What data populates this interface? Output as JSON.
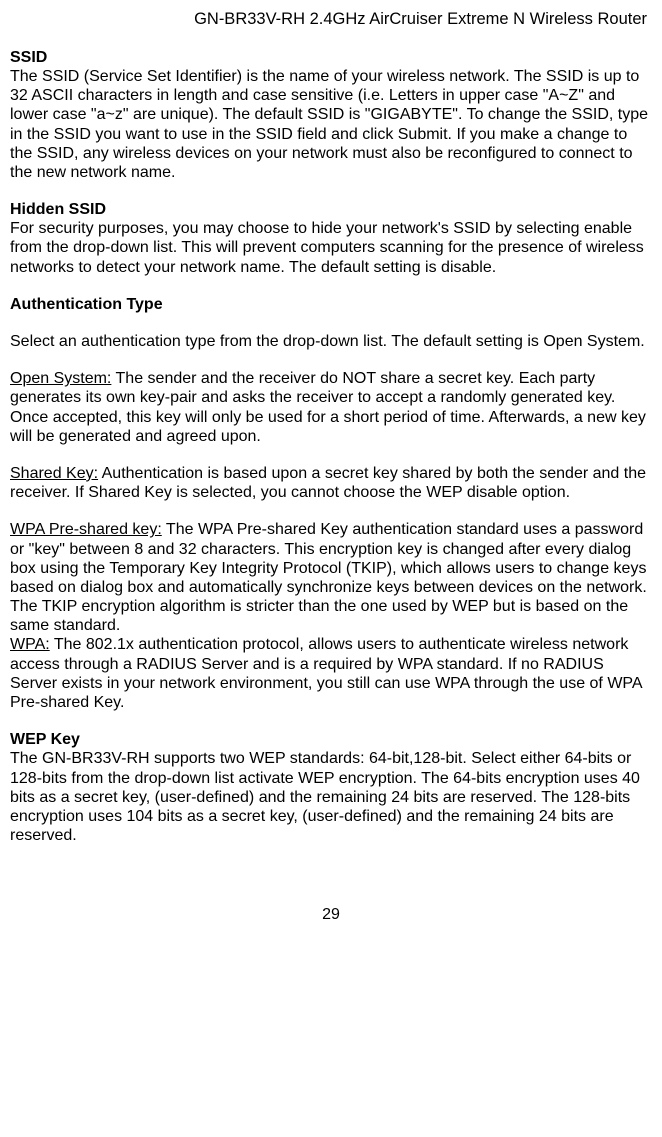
{
  "header": {
    "title": "GN-BR33V-RH 2.4GHz AirCruiser Extreme N Wireless Router"
  },
  "sections": {
    "ssid": {
      "heading": "SSID",
      "body": "The SSID (Service Set Identifier) is the name of your wireless network. The SSID is up to 32 ASCII characters in length and case sensitive (i.e. Letters in upper case \"A~Z\" and lower case \"a~z\" are unique). The default SSID is \"GIGABYTE\". To change the SSID, type in the SSID you want to use in the SSID field and click Submit. If you make a change to the SSID, any wireless devices on your network must also be reconfigured to connect to the new network name."
    },
    "hidden_ssid": {
      "heading": "Hidden SSID",
      "body": "For security purposes, you may choose to hide your network's SSID by selecting enable from the drop-down list. This will prevent computers scanning for the presence of wireless networks to detect your network name. The default setting is disable."
    },
    "auth_type": {
      "heading": "Authentication Type",
      "intro": "Select an authentication type from the drop-down list. The default setting is Open System.",
      "open_system": {
        "label": "Open System:",
        "text": " The sender and the receiver do NOT share a secret key. Each party generates its own key-pair and asks the receiver to accept a randomly generated key. Once accepted, this key will only be used for a short period of time. Afterwards, a new key will be generated and agreed upon."
      },
      "shared_key": {
        "label": "Shared Key:",
        "text": " Authentication is based upon a secret key shared by both the sender and the receiver. If Shared Key is selected, you cannot choose the WEP disable option."
      },
      "wpa_psk": {
        "label": "WPA Pre-shared key:",
        "text": " The WPA Pre-shared Key authentication standard uses a password or \"key\" between 8 and 32 characters. This encryption key is changed after every dialog box using the Temporary Key Integrity Protocol (TKIP), which allows users to change keys based on dialog box and automatically synchronize keys between devices on the network.    The TKIP encryption algorithm is stricter than the one used by WEP but is based on the same standard."
      },
      "wpa": {
        "label": "WPA:",
        "text": " The 802.1x authentication protocol, allows users to authenticate wireless network access through a RADIUS Server and is a required by WPA standard. If no RADIUS Server exists in your network environment, you still can use WPA through the use of WPA Pre-shared Key."
      }
    },
    "wep_key": {
      "heading": "WEP Key",
      "body": "The GN-BR33V-RH supports two WEP standards: 64-bit,128-bit. Select either 64-bits or 128-bits from the drop-down list activate WEP encryption. The 64-bits encryption uses 40 bits as a secret key, (user-defined) and the remaining 24 bits are reserved. The 128-bits encryption uses 104 bits as a secret key, (user-defined) and the remaining 24 bits are reserved."
    }
  },
  "page_number": "29"
}
